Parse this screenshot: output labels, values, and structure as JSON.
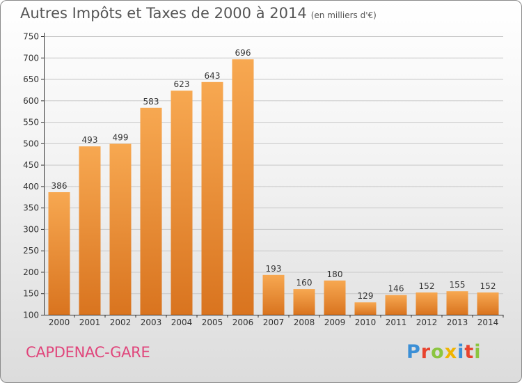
{
  "header": {
    "title": "Autres Impôts et Taxes de 2000 à 2014",
    "unit": "(en milliers d'€)"
  },
  "footer": {
    "place": "CAPDENAC-GARE",
    "logo": "Proxiti"
  },
  "colors": {
    "bar_top": "#f7a851",
    "bar_bottom": "#d9741f",
    "place_text": "#e0457b",
    "logo_letters": [
      "#3b8fd6",
      "#e8432e",
      "#8bc53f",
      "#f0b400",
      "#3b8fd6",
      "#e8432e",
      "#8bc53f"
    ]
  },
  "chart_data": {
    "type": "bar",
    "title": "Autres Impôts et Taxes de 2000 à 2014",
    "subtitle": "(en milliers d'€)",
    "categories": [
      "2000",
      "2001",
      "2002",
      "2003",
      "2004",
      "2005",
      "2006",
      "2007",
      "2008",
      "2009",
      "2010",
      "2011",
      "2012",
      "2013",
      "2014"
    ],
    "values": [
      386,
      493,
      499,
      583,
      623,
      643,
      696,
      193,
      160,
      180,
      129,
      146,
      152,
      155,
      152
    ],
    "ylim": [
      100,
      750
    ],
    "yticks": [
      100,
      150,
      200,
      250,
      300,
      350,
      400,
      450,
      500,
      550,
      600,
      650,
      700,
      750
    ],
    "grid": true,
    "xlabel": "",
    "ylabel": ""
  }
}
